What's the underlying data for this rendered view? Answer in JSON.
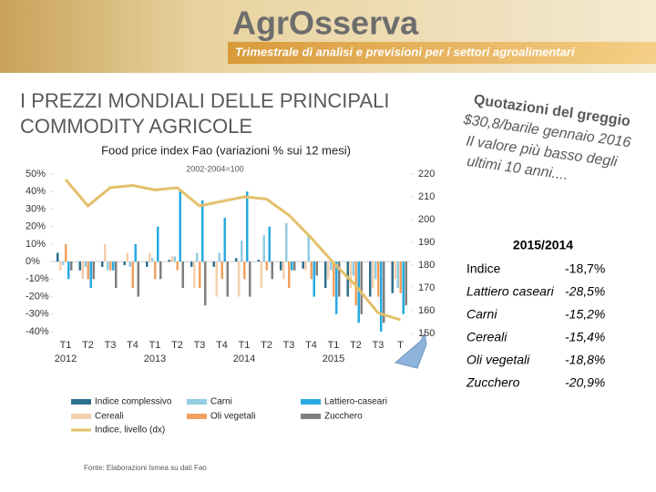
{
  "header": {
    "brand": "AgrOsserva",
    "subtitle": "Trimestrale di analisi e previsioni per i settori agroalimentari"
  },
  "slide_title": [
    "I PREZZI MONDIALI DELLE PRINCIPALI",
    "COMMODITY AGRICOLE"
  ],
  "callout": [
    "Quotazioni del greggio",
    "$30,8/barile gennaio 2016",
    "Il valore più basso degli",
    "ultimi 10 anni...."
  ],
  "table": {
    "title": "2015/2014",
    "rows": [
      [
        "Indice",
        "-18,7%"
      ],
      [
        "Lattiero caseari",
        "-28,5%"
      ],
      [
        "Carni",
        "-15,2%"
      ],
      [
        "Cereali",
        "-15,4%"
      ],
      [
        "Oli vegetali",
        "-18,8%"
      ],
      [
        "Zucchero",
        "-20,9%"
      ]
    ]
  },
  "source": "Fonte: Elaborazioni Ismea su dati Fao",
  "chart_data": {
    "type": "bar",
    "title": "Food price index Fao (variazioni % sui 12 mesi)",
    "subtitle": "2002-2004=100",
    "categories": [
      "T1",
      "T2",
      "T3",
      "T4",
      "T1",
      "T2",
      "T3",
      "T4",
      "T1",
      "T2",
      "T3",
      "T4",
      "T1",
      "T2",
      "T3",
      "T"
    ],
    "year_labels": [
      "2012",
      "2013",
      "2014",
      "2015"
    ],
    "ylim": [
      -40,
      50
    ],
    "yticks": [
      {
        "value": -40,
        "label": "-40%"
      },
      {
        "value": -30,
        "label": "-30%"
      },
      {
        "value": -20,
        "label": "-20%"
      },
      {
        "value": -10,
        "label": "-10%"
      },
      {
        "value": 0,
        "label": "0%"
      },
      {
        "value": 10,
        "label": "10%"
      },
      {
        "value": 20,
        "label": "20%"
      },
      {
        "value": 30,
        "label": "30%"
      },
      {
        "value": 40,
        "label": "40%"
      },
      {
        "value": 50,
        "label": "50%"
      }
    ],
    "y2lim": [
      150,
      220
    ],
    "y2ticks": [
      150,
      160,
      170,
      180,
      190,
      200,
      210,
      220
    ],
    "series": [
      {
        "name": "Indice complessivo",
        "color": "#2e6f8e",
        "values": [
          5,
          -5,
          -3,
          -2,
          -3,
          1,
          -3,
          -3,
          2,
          1,
          -5,
          -4,
          -15,
          -20,
          -20,
          -18
        ]
      },
      {
        "name": "Cereali",
        "color": "#f5cfae",
        "values": [
          -5,
          -10,
          10,
          5,
          5,
          3,
          -15,
          -20,
          -20,
          -15,
          -10,
          -5,
          -10,
          -15,
          -15,
          -10
        ]
      },
      {
        "name": "Indice, livello (dx)",
        "type": "line",
        "axis": "y2",
        "color": "#e3c06a",
        "values": [
          217.6,
          206,
          214,
          215,
          213,
          214,
          206,
          208,
          210,
          209,
          202,
          192,
          181,
          171,
          159,
          156
        ]
      },
      {
        "name": "Carni",
        "color": "#93cde0",
        "values": [
          -2,
          -3,
          -5,
          -3,
          2,
          3,
          5,
          5,
          12,
          15,
          22,
          15,
          -5,
          -8,
          -10,
          -15
        ]
      },
      {
        "name": "Oli vegetali",
        "color": "#f0a060",
        "values": [
          10,
          -10,
          -5,
          -15,
          -10,
          -5,
          -15,
          -10,
          -10,
          -5,
          -15,
          -10,
          -20,
          -25,
          -20,
          -18
        ]
      },
      {
        "name": "Lattiero-caseari",
        "color": "#29a9e0",
        "values": [
          -10,
          -15,
          -5,
          10,
          20,
          40,
          35,
          25,
          40,
          20,
          -5,
          -20,
          -30,
          -35,
          -40,
          -30
        ]
      },
      {
        "name": "Zucchero",
        "color": "#7f7f7f",
        "values": [
          -5,
          -10,
          -15,
          -20,
          -10,
          -15,
          -25,
          -20,
          -20,
          -10,
          -5,
          -8,
          -20,
          -30,
          -35,
          -25
        ]
      }
    ]
  }
}
